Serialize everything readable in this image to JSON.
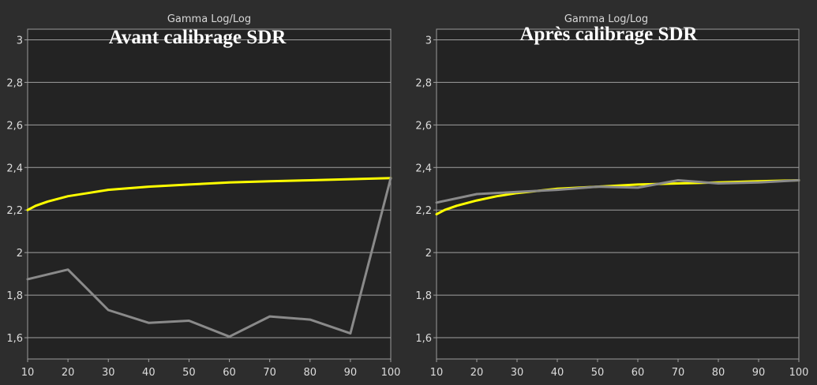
{
  "chart_data": [
    {
      "type": "line",
      "title": "Gamma Log/Log",
      "overlay_title": "Avant calibrage SDR",
      "x": [
        10,
        20,
        30,
        40,
        50,
        60,
        70,
        80,
        90,
        100
      ],
      "xlim": [
        10,
        100
      ],
      "ylim": [
        1.5,
        3.05
      ],
      "xticks": [
        "10",
        "20",
        "30",
        "40",
        "50",
        "60",
        "70",
        "80",
        "90",
        "100"
      ],
      "yticks": [
        "1,6",
        "1,8",
        "2",
        "2,2",
        "2,4",
        "2,6",
        "2,8",
        "3"
      ],
      "grid": true,
      "series": [
        {
          "color": "#ffff00",
          "style": "reference",
          "x": [
            10,
            12,
            15,
            20,
            25,
            30,
            40,
            50,
            60,
            70,
            80,
            90,
            100
          ],
          "values": [
            2.2,
            2.22,
            2.24,
            2.265,
            2.28,
            2.295,
            2.31,
            2.32,
            2.33,
            2.335,
            2.34,
            2.345,
            2.35
          ]
        },
        {
          "color": "#8a8a8a",
          "style": "measured",
          "x": [
            10,
            20,
            30,
            40,
            50,
            60,
            70,
            80,
            90,
            100
          ],
          "values": [
            1.875,
            1.92,
            1.73,
            1.67,
            1.68,
            1.605,
            1.7,
            1.685,
            1.62,
            2.35
          ]
        }
      ]
    },
    {
      "type": "line",
      "title": "Gamma Log/Log",
      "overlay_title": "Après calibrage SDR",
      "x": [
        10,
        20,
        30,
        40,
        50,
        60,
        70,
        80,
        90,
        100
      ],
      "xlim": [
        10,
        100
      ],
      "ylim": [
        1.5,
        3.05
      ],
      "xticks": [
        "10",
        "20",
        "30",
        "40",
        "50",
        "60",
        "70",
        "80",
        "90",
        "100"
      ],
      "yticks": [
        "1,6",
        "1,8",
        "2",
        "2,2",
        "2,4",
        "2,6",
        "2,8",
        "3"
      ],
      "grid": true,
      "series": [
        {
          "color": "#ffff00",
          "style": "reference",
          "x": [
            10,
            12,
            15,
            20,
            25,
            30,
            40,
            50,
            60,
            70,
            80,
            90,
            100
          ],
          "values": [
            2.18,
            2.2,
            2.22,
            2.245,
            2.265,
            2.28,
            2.3,
            2.31,
            2.32,
            2.325,
            2.33,
            2.335,
            2.34
          ]
        },
        {
          "color": "#8a8a8a",
          "style": "measured",
          "x": [
            10,
            20,
            30,
            40,
            50,
            60,
            70,
            80,
            90,
            100
          ],
          "values": [
            2.235,
            2.275,
            2.285,
            2.295,
            2.31,
            2.305,
            2.34,
            2.325,
            2.33,
            2.34
          ]
        }
      ]
    }
  ]
}
